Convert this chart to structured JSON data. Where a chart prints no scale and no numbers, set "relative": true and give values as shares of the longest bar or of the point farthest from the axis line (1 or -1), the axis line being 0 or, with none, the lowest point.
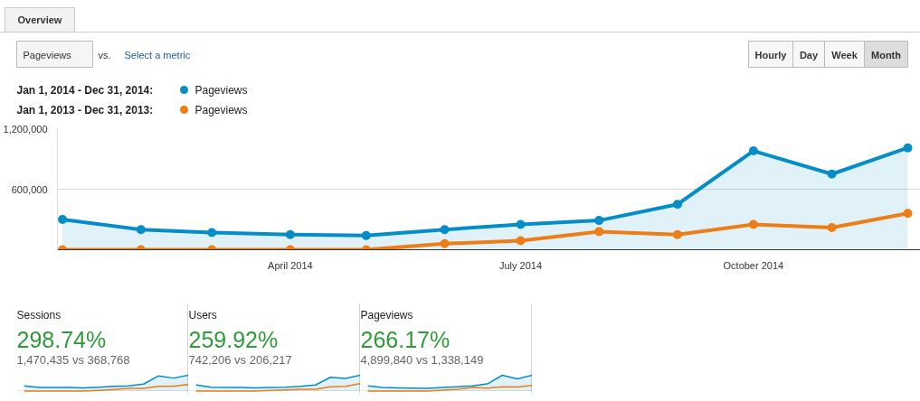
{
  "chart_data": [
    {
      "type": "line",
      "annotations": [
        "Overview",
        "Pageviews",
        "vs.",
        "Select a metric",
        "Hourly",
        "Day",
        "Week",
        "Month",
        "Jan 1, 2014 - Dec 31, 2014:",
        "Jan 1, 2013 - Dec 31, 2013:"
      ],
      "x": [
        "2014-01",
        "2014-02",
        "2014-03",
        "2014-04",
        "2014-05",
        "2014-06",
        "2014-07",
        "2014-08",
        "2014-09",
        "2014-10",
        "2014-11",
        "2014-12"
      ],
      "series": [
        {
          "name": "Pageviews",
          "type": "area",
          "color": "#058dc7",
          "values": [
            300000,
            200000,
            170000,
            150000,
            140000,
            200000,
            250000,
            290000,
            450000,
            980000,
            750000,
            1010000
          ]
        },
        {
          "name": "Pageviews",
          "color": "#ed7e17",
          "values": [
            0,
            0,
            0,
            0,
            0,
            60000,
            90000,
            180000,
            150000,
            250000,
            220000,
            360000
          ]
        }
      ],
      "xlim": [
        "2013-12-30",
        "2014-12-06"
      ],
      "xticks": [
        {
          "value": "2014-04-01",
          "label": "April 2014"
        },
        {
          "value": "2014-07-01",
          "label": "July 2014"
        },
        {
          "value": "2014-10-01",
          "label": "October 2014"
        }
      ],
      "ylim": [
        0,
        1200000
      ],
      "yticks": [
        {
          "value": 600000,
          "label": "600,000"
        },
        {
          "value": 1200000,
          "label": "1,200,000"
        }
      ],
      "grid": "y",
      "legend": "top left",
      "marker": "circle"
    },
    {
      "type": "line",
      "relative": true,
      "title": "Sessions",
      "annotations": [
        "298.74%",
        "1,470,435 vs 368,768"
      ],
      "categories": [
        null,
        null,
        null,
        null,
        null,
        null,
        null,
        null,
        null,
        null,
        null,
        null
      ],
      "series": [
        {
          "type": "area",
          "color": "#058dc7",
          "values": [
            0.33,
            0.22,
            0.22,
            0.22,
            0.2,
            0.24,
            0.29,
            0.33,
            0.44,
            0.96,
            0.82,
            1
          ]
        },
        {
          "color": "#ed7e17",
          "values": [
            0,
            0,
            0,
            0,
            0,
            0.04,
            0.09,
            0.16,
            0.16,
            0.29,
            0.29,
            0.42
          ]
        }
      ]
    },
    {
      "type": "line",
      "relative": true,
      "title": "Users",
      "annotations": [
        "259.92%",
        "742,206 vs 206,217"
      ],
      "categories": [
        null,
        null,
        null,
        null,
        null,
        null,
        null,
        null,
        null,
        null,
        null,
        null
      ],
      "series": [
        {
          "type": "area",
          "color": "#058dc7",
          "values": [
            0.38,
            0.24,
            0.22,
            0.22,
            0.2,
            0.22,
            0.24,
            0.29,
            0.38,
            0.87,
            0.8,
            1
          ]
        },
        {
          "color": "#ed7e17",
          "values": [
            0,
            0,
            0,
            0,
            0,
            0.04,
            0.07,
            0.11,
            0.11,
            0.27,
            0.29,
            0.47
          ]
        }
      ]
    },
    {
      "type": "line",
      "relative": true,
      "title": "Pageviews",
      "annotations": [
        "266.17%",
        "4,899,840 vs 1,338,149"
      ],
      "categories": [
        null,
        null,
        null,
        null,
        null,
        null,
        null,
        null,
        null,
        null,
        null,
        null
      ],
      "series": [
        {
          "type": "area",
          "color": "#058dc7",
          "values": [
            0.32,
            0.23,
            0.2,
            0.18,
            0.16,
            0.23,
            0.27,
            0.32,
            0.45,
            1,
            0.77,
            1
          ]
        },
        {
          "color": "#ed7e17",
          "values": [
            0,
            0,
            0,
            0,
            0,
            0.05,
            0.11,
            0.23,
            0.18,
            0.27,
            0.25,
            0.36
          ]
        }
      ]
    }
  ]
}
